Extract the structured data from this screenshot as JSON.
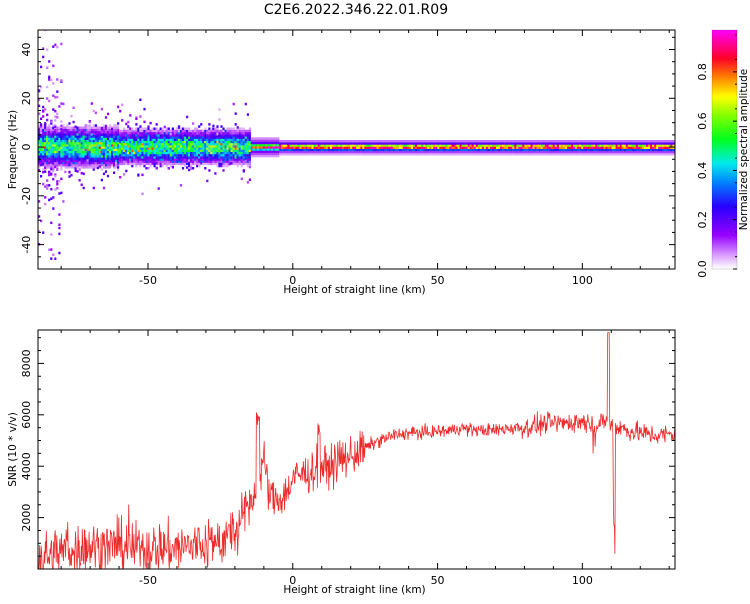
{
  "title": "C2E6.2022.346.22.01.R09",
  "colors": {
    "snr_line": "#ee2a2a",
    "frame": "#000000",
    "background": "#ffffff"
  },
  "chart_data": [
    {
      "type": "heatmap",
      "title": "C2E6.2022.346.22.01.R09",
      "xlabel": "Height of straight line (km)",
      "ylabel": "Frequency (Hz)",
      "xlim": [
        -88,
        132
      ],
      "ylim": [
        -50,
        48
      ],
      "xticks": [
        -50,
        0,
        50,
        100
      ],
      "xtick_labels": [
        "-50",
        "0",
        "50",
        "100"
      ],
      "yticks": [
        -40,
        -20,
        0,
        20,
        40
      ],
      "ytick_labels": [
        "-40",
        "-20",
        "0",
        "20",
        "40"
      ],
      "grid": false,
      "colorscale": "rainbow (white-purple-blue-cyan-green-yellow-red-magenta)",
      "description_of_signal": "Scattered high-variance spectral content near 0 Hz (spread to about ±8 Hz) below about -15 km, narrowing to a tight line at 0 Hz above -15 km with values 0.8-0.95 concentrated along 0 Hz",
      "colorbar": {
        "label": "Normalized spectral amplitude",
        "range": [
          0,
          0.97
        ],
        "ticks": [
          0.0,
          0.2,
          0.4,
          0.6,
          0.8
        ],
        "tick_labels": [
          "0.0",
          "0.2",
          "0.4",
          "0.6",
          "0.8"
        ]
      }
    },
    {
      "type": "line",
      "xlabel": "Height of straight line (km)",
      "ylabel": "SNR (10 * v/v)",
      "xlim": [
        -88,
        132
      ],
      "ylim": [
        0,
        9300
      ],
      "xticks": [
        -50,
        0,
        50,
        100
      ],
      "xtick_labels": [
        "-50",
        "0",
        "50",
        "100"
      ],
      "yticks": [
        2000,
        4000,
        6000,
        8000
      ],
      "ytick_labels": [
        "2000",
        "4000",
        "6000",
        "8000"
      ],
      "grid": false,
      "series": [
        {
          "x": [
            -88,
            -85,
            -80,
            -75,
            -70,
            -65,
            -60,
            -55,
            -50,
            -45,
            -40,
            -35,
            -30,
            -25,
            -20,
            -17,
            -15,
            -12,
            -10,
            -8,
            -5,
            -2,
            0,
            3,
            5,
            8,
            10,
            12,
            15,
            18,
            20,
            23,
            25,
            28,
            30,
            35,
            40,
            45,
            50,
            55,
            58,
            60,
            65,
            70,
            75,
            80,
            85,
            88,
            90,
            95,
            100,
            103,
            105,
            108,
            110,
            112,
            115,
            120,
            125,
            132
          ],
          "y": [
            300,
            500,
            700,
            800,
            900,
            850,
            900,
            850,
            800,
            850,
            800,
            900,
            950,
            1100,
            1400,
            2000,
            2500,
            3200,
            4300,
            2800,
            2700,
            3000,
            3500,
            3700,
            3700,
            3900,
            4000,
            3900,
            4200,
            4300,
            4400,
            4600,
            4700,
            4900,
            5000,
            5200,
            5300,
            5300,
            5350,
            5400,
            5500,
            5450,
            5400,
            5400,
            5500,
            5500,
            5600,
            5700,
            5650,
            5700,
            5750,
            5700,
            5600,
            5800,
            5700,
            5600,
            5400,
            5300,
            5200,
            5250
          ]
        }
      ],
      "annotations": [
        {
          "x": -12,
          "y": 6100,
          "text": "spike"
        },
        {
          "x": 9,
          "y": 5700,
          "text": "spike"
        },
        {
          "x": 109,
          "y": 9300,
          "text": "spike"
        },
        {
          "x": 111,
          "y": 1700,
          "text": "dip"
        }
      ]
    }
  ]
}
